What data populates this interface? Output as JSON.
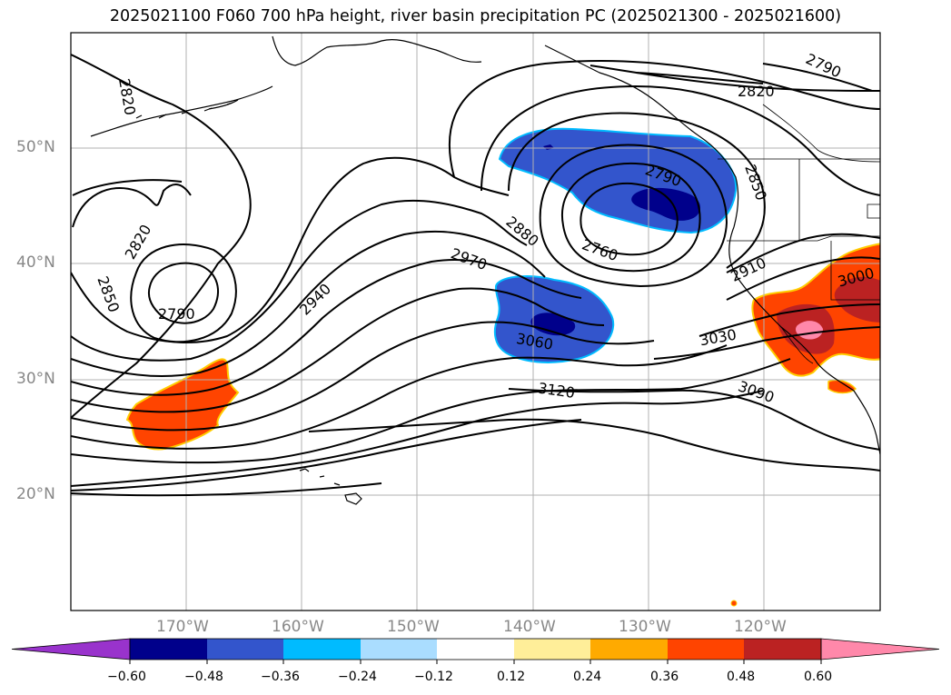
{
  "title": "2025021100 F060 700 hPa height, river basin precipitation PC (2025021300 - 2025021600)",
  "map": {
    "lon_range": [
      -180,
      -110
    ],
    "lat_range": [
      10,
      60
    ],
    "meridians": [
      -170,
      -160,
      -150,
      -140,
      -130,
      -120
    ],
    "parallels": [
      20,
      30,
      40,
      50
    ],
    "lon_labels": [
      "170°W",
      "160°W",
      "150°W",
      "140°W",
      "130°W",
      "120°W"
    ],
    "lat_labels": [
      "50°N",
      "40°N",
      "30°N",
      "20°N"
    ],
    "contour_labels": [
      "2820",
      "2790",
      "2820",
      "2850",
      "2790",
      "2820",
      "2850",
      "2790",
      "2940",
      "2970",
      "2880",
      "2760",
      "2910",
      "3000",
      "3060",
      "3030",
      "3120",
      "3090"
    ]
  },
  "colorbar": {
    "colors": [
      "#9933cc",
      "#00008b",
      "#3355cc",
      "#00bbff",
      "#aaddff",
      "#ffffff",
      "#ffee99",
      "#ffaa00",
      "#ff4400",
      "#bb2222",
      "#ff88aa"
    ],
    "tick_labels": [
      "−0.60",
      "−0.48",
      "−0.36",
      "−0.24",
      "−0.12",
      "0.12",
      "0.24",
      "0.36",
      "0.48",
      "0.60"
    ]
  }
}
